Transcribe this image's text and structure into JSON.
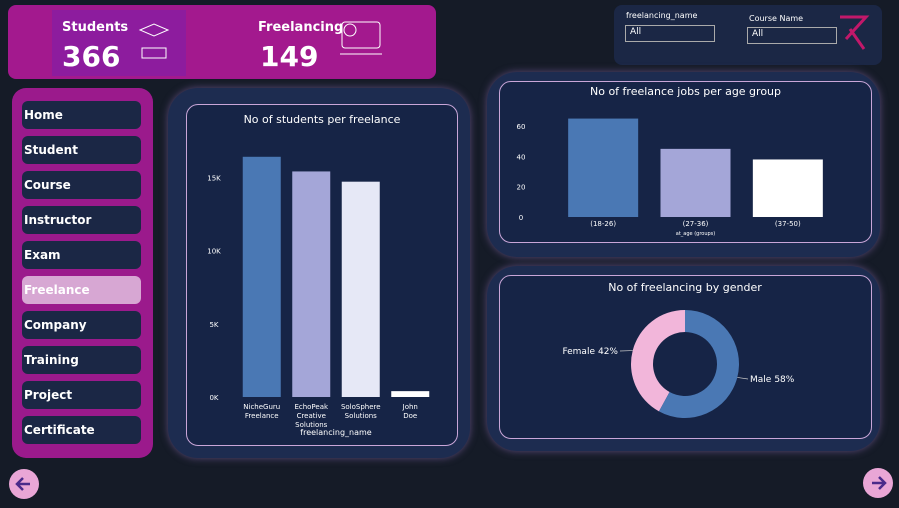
{
  "kpis": [
    {
      "label": "Students",
      "value": "366"
    },
    {
      "label": "Freelancing",
      "value": "149"
    }
  ],
  "filters": [
    {
      "label": "freelancing_name",
      "value": "All"
    },
    {
      "label": "Course Name",
      "value": "All"
    }
  ],
  "nav": [
    "Home",
    "Student",
    "Course",
    "Instructor",
    "Exam",
    "Freelance",
    "Company",
    "Training",
    "Project",
    "Certificate"
  ],
  "chart_data": [
    {
      "type": "bar",
      "title": "No of students per freelance",
      "x_label": "freelancing_name",
      "categories": [
        "NicheGuru Freelance",
        "EchoPeak Creative Solutions",
        "SoloSphere Solutions",
        "John Doe"
      ],
      "values": [
        16400,
        15400,
        14700,
        400
      ],
      "colors": [
        "#4a78b4",
        "#a4a6d8",
        "#e6e8f6",
        "#ffffff"
      ],
      "ylim": [
        0,
        17000
      ],
      "yticks": [
        {
          "value": 0,
          "label": "0K"
        },
        {
          "value": 5000,
          "label": "5K"
        },
        {
          "value": 10000,
          "label": "10K"
        },
        {
          "value": 15000,
          "label": "15K"
        }
      ]
    },
    {
      "type": "bar",
      "title": "No of freelance jobs per age group",
      "x_label": "at_age (groups)",
      "categories": [
        "(18-26)",
        "(27-36)",
        "(37-50)"
      ],
      "values": [
        65,
        45,
        38
      ],
      "colors": [
        "#4a78b4",
        "#a4a6d8",
        "#ffffff"
      ],
      "ylim": [
        0,
        70
      ],
      "yticks": [
        0,
        20,
        40,
        60
      ]
    },
    {
      "type": "donut",
      "title": "No of freelancing by gender",
      "categories": [
        "Female",
        "Male"
      ],
      "values": [
        42,
        58
      ],
      "value_labels": [
        "42%",
        "58%"
      ],
      "colors": [
        "#f2b6da",
        "#4a78b4"
      ]
    }
  ]
}
